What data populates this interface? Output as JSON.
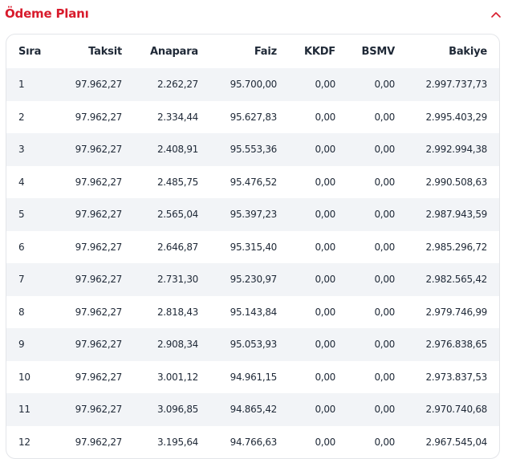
{
  "section": {
    "title": "Ödeme Planı",
    "toggle_icon": "chevron-up-icon",
    "accent_color": "#d81b2c"
  },
  "table": {
    "headers": [
      "Sıra",
      "Taksit",
      "Anapara",
      "Faiz",
      "KKDF",
      "BSMV",
      "Bakiye"
    ],
    "rows": [
      [
        "1",
        "97.962,27",
        "2.262,27",
        "95.700,00",
        "0,00",
        "0,00",
        "2.997.737,73"
      ],
      [
        "2",
        "97.962,27",
        "2.334,44",
        "95.627,83",
        "0,00",
        "0,00",
        "2.995.403,29"
      ],
      [
        "3",
        "97.962,27",
        "2.408,91",
        "95.553,36",
        "0,00",
        "0,00",
        "2.992.994,38"
      ],
      [
        "4",
        "97.962,27",
        "2.485,75",
        "95.476,52",
        "0,00",
        "0,00",
        "2.990.508,63"
      ],
      [
        "5",
        "97.962,27",
        "2.565,04",
        "95.397,23",
        "0,00",
        "0,00",
        "2.987.943,59"
      ],
      [
        "6",
        "97.962,27",
        "2.646,87",
        "95.315,40",
        "0,00",
        "0,00",
        "2.985.296,72"
      ],
      [
        "7",
        "97.962,27",
        "2.731,30",
        "95.230,97",
        "0,00",
        "0,00",
        "2.982.565,42"
      ],
      [
        "8",
        "97.962,27",
        "2.818,43",
        "95.143,84",
        "0,00",
        "0,00",
        "2.979.746,99"
      ],
      [
        "9",
        "97.962,27",
        "2.908,34",
        "95.053,93",
        "0,00",
        "0,00",
        "2.976.838,65"
      ],
      [
        "10",
        "97.962,27",
        "3.001,12",
        "94.961,15",
        "0,00",
        "0,00",
        "2.973.837,53"
      ],
      [
        "11",
        "97.962,27",
        "3.096,85",
        "94.865,42",
        "0,00",
        "0,00",
        "2.970.740,68"
      ],
      [
        "12",
        "97.962,27",
        "3.195,64",
        "94.766,63",
        "0,00",
        "0,00",
        "2.967.545,04"
      ]
    ]
  }
}
